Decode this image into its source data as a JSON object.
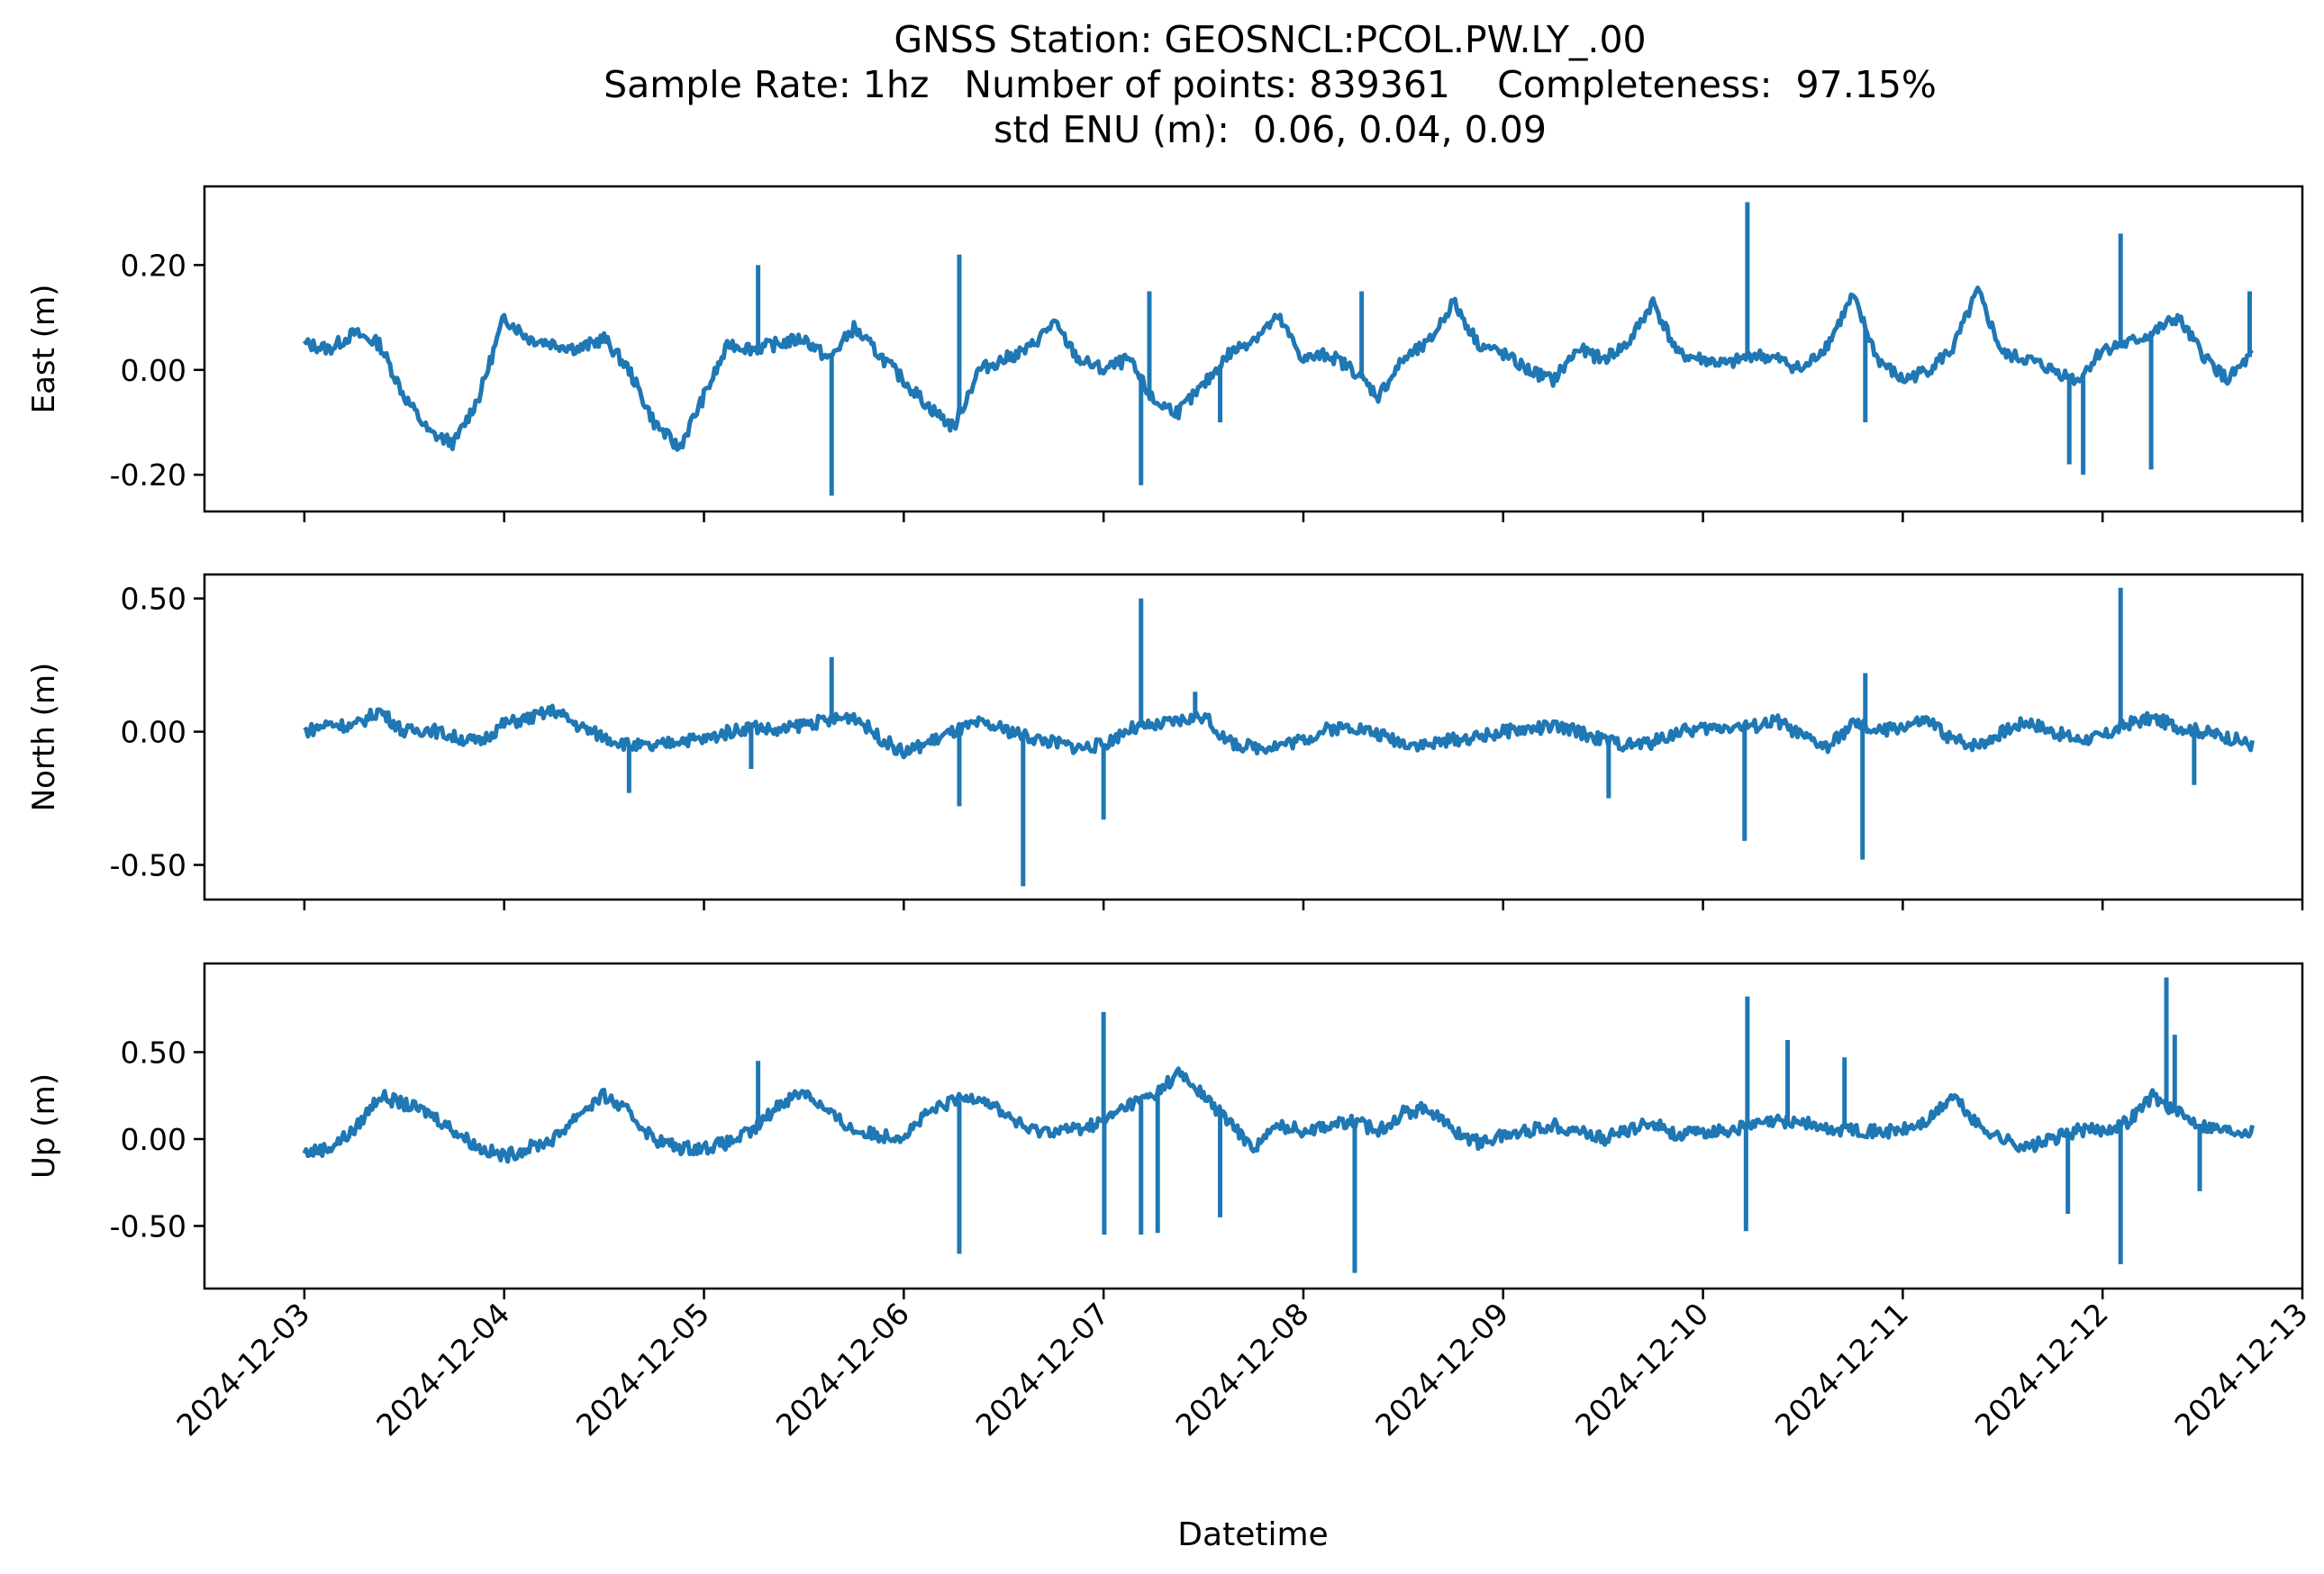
{
  "figure": {
    "title_lines": [
      "GNSS Station: GEOSNCL:PCOL.PW.LY_.00",
      "Sample Rate: 1hz   Number of points: 839361    Completeness:  97.15%",
      "std ENU (m):  0.06, 0.04, 0.09"
    ],
    "xlabel": "Datetime",
    "line_color": "#1f77b4"
  },
  "chart_data": [
    {
      "type": "line",
      "name": "east",
      "ylabel": "East (m)",
      "xlim": [
        "2024-12-02T12:00",
        "2024-12-13T00:00"
      ],
      "ylim": [
        -0.27,
        0.35
      ],
      "yticks": [
        0.2,
        0.0,
        -0.2
      ],
      "ytick_labels": [
        "0.20",
        "0.00",
        "-0.20"
      ],
      "xticks": [
        "2024-12-03",
        "2024-12-04",
        "2024-12-05",
        "2024-12-06",
        "2024-12-07",
        "2024-12-08",
        "2024-12-09",
        "2024-12-10",
        "2024-12-11",
        "2024-12-12",
        "2024-12-13"
      ],
      "xtick_labels_visible": false,
      "x": [
        "2024-12-03T00:00",
        "2024-12-03T03:00",
        "2024-12-03T06:00",
        "2024-12-03T09:00",
        "2024-12-03T12:00",
        "2024-12-03T15:00",
        "2024-12-03T18:00",
        "2024-12-03T21:00",
        "2024-12-04T00:00",
        "2024-12-04T03:00",
        "2024-12-04T06:00",
        "2024-12-04T09:00",
        "2024-12-04T12:00",
        "2024-12-04T15:00",
        "2024-12-04T18:00",
        "2024-12-04T21:00",
        "2024-12-05T00:00",
        "2024-12-05T03:00",
        "2024-12-05T06:00",
        "2024-12-05T09:00",
        "2024-12-05T12:00",
        "2024-12-05T15:00",
        "2024-12-05T18:00",
        "2024-12-05T21:00",
        "2024-12-06T00:00",
        "2024-12-06T03:00",
        "2024-12-06T06:00",
        "2024-12-06T09:00",
        "2024-12-06T12:00",
        "2024-12-06T15:00",
        "2024-12-06T18:00",
        "2024-12-06T21:00",
        "2024-12-07T00:00",
        "2024-12-07T03:00",
        "2024-12-07T06:00",
        "2024-12-07T09:00",
        "2024-12-07T12:00",
        "2024-12-07T15:00",
        "2024-12-07T18:00",
        "2024-12-07T21:00",
        "2024-12-08T00:00",
        "2024-12-08T03:00",
        "2024-12-08T06:00",
        "2024-12-08T09:00",
        "2024-12-08T12:00",
        "2024-12-08T15:00",
        "2024-12-08T18:00",
        "2024-12-08T21:00",
        "2024-12-09T00:00",
        "2024-12-09T03:00",
        "2024-12-09T06:00",
        "2024-12-09T09:00",
        "2024-12-09T12:00",
        "2024-12-09T15:00",
        "2024-12-09T18:00",
        "2024-12-09T21:00",
        "2024-12-10T00:00",
        "2024-12-10T03:00",
        "2024-12-10T06:00",
        "2024-12-10T09:00",
        "2024-12-10T12:00",
        "2024-12-10T15:00",
        "2024-12-10T18:00",
        "2024-12-10T21:00",
        "2024-12-11T00:00",
        "2024-12-11T03:00",
        "2024-12-11T06:00",
        "2024-12-11T09:00",
        "2024-12-11T12:00",
        "2024-12-11T15:00",
        "2024-12-11T18:00",
        "2024-12-11T21:00",
        "2024-12-12T00:00",
        "2024-12-12T03:00",
        "2024-12-12T06:00",
        "2024-12-12T09:00",
        "2024-12-12T12:00",
        "2024-12-12T15:00",
        "2024-12-12T18:00"
      ],
      "y": [
        0.05,
        0.04,
        0.07,
        0.05,
        -0.05,
        -0.12,
        -0.14,
        -0.05,
        0.1,
        0.06,
        0.05,
        0.04,
        0.06,
        0.0,
        -0.1,
        -0.15,
        -0.05,
        0.05,
        0.04,
        0.05,
        0.06,
        0.02,
        0.08,
        0.03,
        -0.02,
        -0.07,
        -0.11,
        0.0,
        0.02,
        0.04,
        0.09,
        0.02,
        0.0,
        0.02,
        -0.06,
        -0.08,
        -0.03,
        0.03,
        0.06,
        0.1,
        0.02,
        0.03,
        0.0,
        -0.05,
        0.02,
        0.05,
        0.13,
        0.05,
        0.03,
        0.0,
        -0.02,
        0.04,
        0.02,
        0.05,
        0.13,
        0.03,
        0.02,
        0.01,
        0.03,
        0.02,
        0.0,
        0.05,
        0.14,
        0.02,
        -0.02,
        0.0,
        0.04,
        0.15,
        0.03,
        0.02,
        0.0,
        -0.02,
        0.04,
        0.05,
        0.07,
        0.1,
        0.03,
        -0.02,
        0.03
      ],
      "spikes": [
        {
          "x": "2024-12-05T06:30",
          "y": 0.2
        },
        {
          "x": "2024-12-05T15:20",
          "y": -0.24
        },
        {
          "x": "2024-12-06T06:40",
          "y": 0.22
        },
        {
          "x": "2024-12-07T04:30",
          "y": -0.22
        },
        {
          "x": "2024-12-07T05:30",
          "y": 0.15
        },
        {
          "x": "2024-12-07T14:00",
          "y": -0.1
        },
        {
          "x": "2024-12-08T07:00",
          "y": 0.15
        },
        {
          "x": "2024-12-10T05:20",
          "y": 0.32
        },
        {
          "x": "2024-12-10T19:30",
          "y": -0.1
        },
        {
          "x": "2024-12-12T02:10",
          "y": 0.26
        },
        {
          "x": "2024-12-11T20:00",
          "y": -0.18
        },
        {
          "x": "2024-12-11T21:40",
          "y": -0.2
        },
        {
          "x": "2024-12-12T05:50",
          "y": -0.19
        },
        {
          "x": "2024-12-12T17:40",
          "y": 0.15
        }
      ],
      "grid": false
    },
    {
      "type": "line",
      "name": "north",
      "ylabel": "North (m)",
      "xlim": [
        "2024-12-02T12:00",
        "2024-12-13T00:00"
      ],
      "ylim": [
        -0.63,
        0.59
      ],
      "yticks": [
        0.5,
        0.0,
        -0.5
      ],
      "ytick_labels": [
        "0.50",
        "0.00",
        "-0.50"
      ],
      "xticks": [
        "2024-12-03",
        "2024-12-04",
        "2024-12-05",
        "2024-12-06",
        "2024-12-07",
        "2024-12-08",
        "2024-12-09",
        "2024-12-10",
        "2024-12-11",
        "2024-12-12",
        "2024-12-13"
      ],
      "xtick_labels_visible": false,
      "x": [
        "2024-12-03T00:00",
        "2024-12-03T03:00",
        "2024-12-03T06:00",
        "2024-12-03T09:00",
        "2024-12-03T12:00",
        "2024-12-03T15:00",
        "2024-12-03T18:00",
        "2024-12-03T21:00",
        "2024-12-04T00:00",
        "2024-12-04T03:00",
        "2024-12-04T06:00",
        "2024-12-04T09:00",
        "2024-12-04T12:00",
        "2024-12-04T15:00",
        "2024-12-04T18:00",
        "2024-12-04T21:00",
        "2024-12-05T00:00",
        "2024-12-05T03:00",
        "2024-12-05T06:00",
        "2024-12-05T09:00",
        "2024-12-05T12:00",
        "2024-12-05T15:00",
        "2024-12-05T18:00",
        "2024-12-05T21:00",
        "2024-12-06T00:00",
        "2024-12-06T03:00",
        "2024-12-06T06:00",
        "2024-12-06T09:00",
        "2024-12-06T12:00",
        "2024-12-06T15:00",
        "2024-12-06T18:00",
        "2024-12-06T21:00",
        "2024-12-07T00:00",
        "2024-12-07T03:00",
        "2024-12-07T06:00",
        "2024-12-07T09:00",
        "2024-12-07T12:00",
        "2024-12-07T15:00",
        "2024-12-07T18:00",
        "2024-12-07T21:00",
        "2024-12-08T00:00",
        "2024-12-08T03:00",
        "2024-12-08T06:00",
        "2024-12-08T09:00",
        "2024-12-08T12:00",
        "2024-12-08T15:00",
        "2024-12-08T18:00",
        "2024-12-08T21:00",
        "2024-12-09T00:00",
        "2024-12-09T03:00",
        "2024-12-09T06:00",
        "2024-12-09T09:00",
        "2024-12-09T12:00",
        "2024-12-09T15:00",
        "2024-12-09T18:00",
        "2024-12-09T21:00",
        "2024-12-10T00:00",
        "2024-12-10T03:00",
        "2024-12-10T06:00",
        "2024-12-10T09:00",
        "2024-12-10T12:00",
        "2024-12-10T15:00",
        "2024-12-10T18:00",
        "2024-12-10T21:00",
        "2024-12-11T00:00",
        "2024-12-11T03:00",
        "2024-12-11T06:00",
        "2024-12-11T09:00",
        "2024-12-11T12:00",
        "2024-12-11T15:00",
        "2024-12-11T18:00",
        "2024-12-11T21:00",
        "2024-12-12T00:00",
        "2024-12-12T03:00",
        "2024-12-12T06:00",
        "2024-12-12T09:00",
        "2024-12-12T12:00",
        "2024-12-12T15:00",
        "2024-12-12T18:00"
      ],
      "y": [
        0.0,
        0.03,
        0.02,
        0.08,
        0.0,
        0.01,
        -0.02,
        -0.04,
        0.03,
        0.05,
        0.08,
        0.02,
        -0.02,
        -0.05,
        -0.06,
        -0.03,
        -0.03,
        0.0,
        0.02,
        0.0,
        0.03,
        0.04,
        0.06,
        -0.02,
        -0.08,
        -0.04,
        0.0,
        0.03,
        0.01,
        -0.02,
        -0.04,
        -0.06,
        -0.05,
        0.01,
        0.02,
        0.04,
        0.06,
        -0.04,
        -0.06,
        -0.05,
        -0.03,
        0.01,
        0.02,
        -0.01,
        -0.04,
        -0.05,
        -0.03,
        -0.02,
        0.0,
        0.01,
        0.02,
        0.0,
        -0.03,
        -0.05,
        -0.04,
        0.0,
        0.01,
        0.02,
        0.02,
        0.04,
        -0.02,
        -0.06,
        0.03,
        0.0,
        0.02,
        0.04,
        -0.03,
        -0.05,
        0.0,
        0.04,
        0.0,
        -0.03,
        -0.02,
        0.03,
        0.05,
        0.02,
        0.0,
        -0.02,
        -0.05
      ],
      "spikes": [
        {
          "x": "2024-12-04T15:00",
          "y": -0.23
        },
        {
          "x": "2024-12-05T05:40",
          "y": -0.14
        },
        {
          "x": "2024-12-05T15:20",
          "y": 0.28
        },
        {
          "x": "2024-12-06T06:40",
          "y": -0.28
        },
        {
          "x": "2024-12-06T14:20",
          "y": -0.58
        },
        {
          "x": "2024-12-07T00:00",
          "y": -0.33
        },
        {
          "x": "2024-12-07T04:30",
          "y": 0.5
        },
        {
          "x": "2024-12-07T11:00",
          "y": 0.15
        },
        {
          "x": "2024-12-09T12:40",
          "y": -0.25
        },
        {
          "x": "2024-12-10T05:00",
          "y": -0.41
        },
        {
          "x": "2024-12-10T19:10",
          "y": -0.48
        },
        {
          "x": "2024-12-10T19:30",
          "y": 0.22
        },
        {
          "x": "2024-12-12T02:10",
          "y": 0.54
        },
        {
          "x": "2024-12-12T11:00",
          "y": -0.2
        }
      ],
      "grid": false
    },
    {
      "type": "line",
      "name": "up",
      "ylabel": "Up (m)",
      "xlim": [
        "2024-12-02T12:00",
        "2024-12-13T00:00"
      ],
      "ylim": [
        -0.86,
        1.01
      ],
      "yticks": [
        0.5,
        0.0,
        -0.5
      ],
      "ytick_labels": [
        "0.50",
        "0.00",
        "-0.50"
      ],
      "xticks": [
        "2024-12-03",
        "2024-12-04",
        "2024-12-05",
        "2024-12-06",
        "2024-12-07",
        "2024-12-08",
        "2024-12-09",
        "2024-12-10",
        "2024-12-11",
        "2024-12-12",
        "2024-12-13"
      ],
      "xtick_labels": [
        "2024-12-03",
        "2024-12-04",
        "2024-12-05",
        "2024-12-06",
        "2024-12-07",
        "2024-12-08",
        "2024-12-09",
        "2024-12-10",
        "2024-12-11",
        "2024-12-12",
        "2024-12-13"
      ],
      "x": [
        "2024-12-03T00:00",
        "2024-12-03T03:00",
        "2024-12-03T06:00",
        "2024-12-03T09:00",
        "2024-12-03T12:00",
        "2024-12-03T15:00",
        "2024-12-03T18:00",
        "2024-12-03T21:00",
        "2024-12-04T00:00",
        "2024-12-04T03:00",
        "2024-12-04T06:00",
        "2024-12-04T09:00",
        "2024-12-04T12:00",
        "2024-12-04T15:00",
        "2024-12-04T18:00",
        "2024-12-04T21:00",
        "2024-12-05T00:00",
        "2024-12-05T03:00",
        "2024-12-05T06:00",
        "2024-12-05T09:00",
        "2024-12-05T12:00",
        "2024-12-05T15:00",
        "2024-12-05T18:00",
        "2024-12-05T21:00",
        "2024-12-06T00:00",
        "2024-12-06T03:00",
        "2024-12-06T06:00",
        "2024-12-06T09:00",
        "2024-12-06T12:00",
        "2024-12-06T15:00",
        "2024-12-06T18:00",
        "2024-12-06T21:00",
        "2024-12-07T00:00",
        "2024-12-07T03:00",
        "2024-12-07T06:00",
        "2024-12-07T09:00",
        "2024-12-07T12:00",
        "2024-12-07T15:00",
        "2024-12-07T18:00",
        "2024-12-07T21:00",
        "2024-12-08T00:00",
        "2024-12-08T03:00",
        "2024-12-08T06:00",
        "2024-12-08T09:00",
        "2024-12-08T12:00",
        "2024-12-08T15:00",
        "2024-12-08T18:00",
        "2024-12-08T21:00",
        "2024-12-09T00:00",
        "2024-12-09T03:00",
        "2024-12-09T06:00",
        "2024-12-09T09:00",
        "2024-12-09T12:00",
        "2024-12-09T15:00",
        "2024-12-09T18:00",
        "2024-12-09T21:00",
        "2024-12-10T00:00",
        "2024-12-10T03:00",
        "2024-12-10T06:00",
        "2024-12-10T09:00",
        "2024-12-10T12:00",
        "2024-12-10T15:00",
        "2024-12-10T18:00",
        "2024-12-10T21:00",
        "2024-12-11T00:00",
        "2024-12-11T03:00",
        "2024-12-11T06:00",
        "2024-12-11T09:00",
        "2024-12-11T12:00",
        "2024-12-11T15:00",
        "2024-12-11T18:00",
        "2024-12-11T21:00",
        "2024-12-12T00:00",
        "2024-12-12T03:00",
        "2024-12-12T06:00",
        "2024-12-12T09:00",
        "2024-12-12T12:00",
        "2024-12-12T15:00",
        "2024-12-12T18:00"
      ],
      "y": [
        -0.08,
        -0.05,
        0.05,
        0.25,
        0.2,
        0.15,
        0.05,
        -0.05,
        -0.1,
        -0.05,
        0.0,
        0.15,
        0.25,
        0.15,
        0.0,
        -0.05,
        -0.05,
        -0.02,
        0.05,
        0.2,
        0.28,
        0.15,
        0.05,
        0.02,
        0.02,
        0.15,
        0.22,
        0.25,
        0.15,
        0.05,
        0.05,
        0.06,
        0.1,
        0.2,
        0.25,
        0.38,
        0.25,
        0.1,
        -0.05,
        0.08,
        0.05,
        0.08,
        0.1,
        0.05,
        0.15,
        0.18,
        0.05,
        -0.02,
        0.02,
        0.05,
        0.08,
        0.05,
        0.0,
        0.05,
        0.1,
        0.02,
        0.04,
        0.05,
        0.08,
        0.1,
        0.1,
        0.05,
        0.06,
        0.04,
        0.05,
        0.1,
        0.25,
        0.08,
        0.0,
        -0.05,
        0.0,
        0.05,
        0.05,
        0.1,
        0.25,
        0.15,
        0.08,
        0.05,
        0.05
      ],
      "spikes": [
        {
          "x": "2024-12-05T06:30",
          "y": 0.45
        },
        {
          "x": "2024-12-06T06:40",
          "y": -0.66
        },
        {
          "x": "2024-12-07T00:00",
          "y": 0.73
        },
        {
          "x": "2024-12-07T00:05",
          "y": -0.55
        },
        {
          "x": "2024-12-07T04:30",
          "y": -0.55
        },
        {
          "x": "2024-12-07T06:30",
          "y": -0.54
        },
        {
          "x": "2024-12-07T14:00",
          "y": -0.45
        },
        {
          "x": "2024-12-08T06:10",
          "y": -0.77
        },
        {
          "x": "2024-12-10T05:20",
          "y": 0.82
        },
        {
          "x": "2024-12-10T05:10",
          "y": -0.53
        },
        {
          "x": "2024-12-10T10:10",
          "y": 0.57
        },
        {
          "x": "2024-12-10T17:00",
          "y": 0.47
        },
        {
          "x": "2024-12-11T19:50",
          "y": -0.43
        },
        {
          "x": "2024-12-12T02:10",
          "y": -0.72
        },
        {
          "x": "2024-12-12T07:40",
          "y": 0.93
        },
        {
          "x": "2024-12-12T08:40",
          "y": 0.6
        },
        {
          "x": "2024-12-12T11:40",
          "y": -0.3
        }
      ],
      "grid": false
    }
  ]
}
